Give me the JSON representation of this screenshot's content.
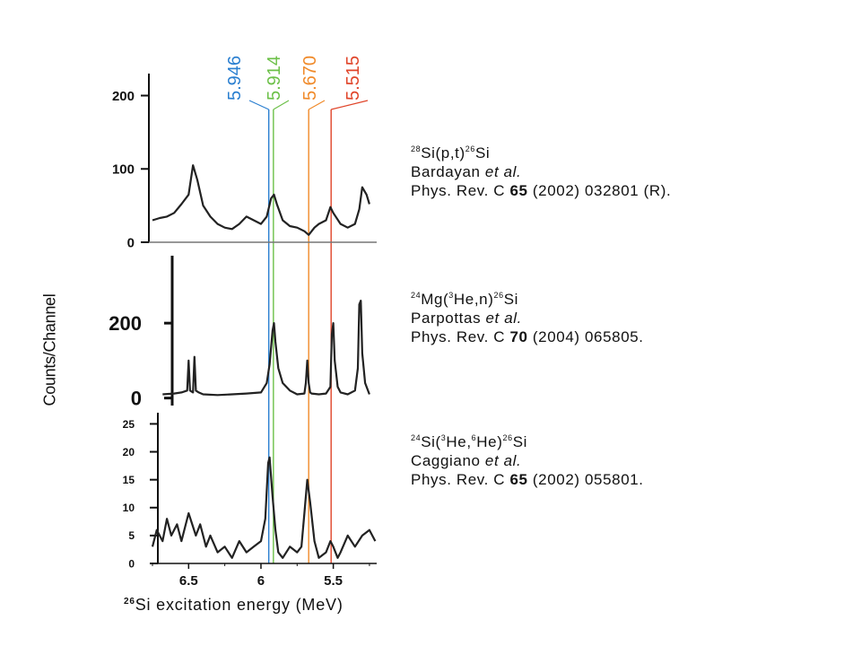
{
  "chart_data": {
    "type": "line",
    "x_axis": {
      "label_isotope": "26",
      "label_text": "Si excitation energy (MeV)",
      "reversed": true,
      "range": [
        6.75,
        5.2
      ],
      "ticks": [
        6.5,
        6,
        5.5
      ],
      "tick_labels": [
        "6.5",
        "6",
        "5.5"
      ]
    },
    "y_axis_label": "Counts/Channel",
    "markers": [
      {
        "energy": 5.946,
        "label": "5.946",
        "color": "#2a7fd0"
      },
      {
        "energy": 5.914,
        "label": "5.914",
        "color": "#6cc048"
      },
      {
        "energy": 5.67,
        "label": "5.670",
        "color": "#f08a2a"
      },
      {
        "energy": 5.515,
        "label": "5.515",
        "color": "#e0452a"
      }
    ],
    "panels": [
      {
        "reaction_parts": {
          "a": "28",
          "b": "Si(p,t)",
          "c": "26",
          "d": "Si"
        },
        "authors": "Bardayan",
        "etal": "et al.",
        "journal": "Phys. Rev. C",
        "volume": "65",
        "year_page": "(2002) 032801 (R).",
        "ylim": [
          0,
          230
        ],
        "yticks": [
          0,
          100,
          200
        ],
        "ytick_labels": [
          "0",
          "100",
          "200"
        ],
        "x": [
          6.75,
          6.7,
          6.65,
          6.6,
          6.55,
          6.5,
          6.47,
          6.44,
          6.4,
          6.35,
          6.3,
          6.25,
          6.2,
          6.15,
          6.1,
          6.05,
          6.0,
          5.96,
          5.93,
          5.91,
          5.89,
          5.85,
          5.8,
          5.75,
          5.7,
          5.67,
          5.63,
          5.6,
          5.55,
          5.52,
          5.5,
          5.45,
          5.4,
          5.35,
          5.32,
          5.3,
          5.27,
          5.25
        ],
        "y": [
          30,
          33,
          35,
          40,
          52,
          65,
          105,
          85,
          50,
          35,
          25,
          20,
          18,
          25,
          35,
          30,
          25,
          35,
          60,
          65,
          52,
          30,
          22,
          20,
          15,
          10,
          20,
          25,
          30,
          48,
          40,
          25,
          20,
          25,
          45,
          75,
          65,
          52
        ]
      },
      {
        "reaction_parts": {
          "a": "24",
          "b": "Mg(",
          "c": "3",
          "d": "He,n)",
          "e": "26",
          "f": "Si"
        },
        "authors": "Parpottas",
        "etal": "et al.",
        "journal": "Phys. Rev. C",
        "volume": "70",
        "year_page": "(2004) 065805.",
        "ylim": [
          -20,
          380
        ],
        "yticks": [
          0,
          200
        ],
        "ytick_labels": [
          "0",
          "200"
        ],
        "x": [
          6.68,
          6.6,
          6.55,
          6.51,
          6.5,
          6.49,
          6.47,
          6.46,
          6.45,
          6.43,
          6.4,
          6.3,
          6.2,
          6.1,
          6.0,
          5.96,
          5.94,
          5.92,
          5.91,
          5.9,
          5.88,
          5.85,
          5.8,
          5.75,
          5.7,
          5.69,
          5.68,
          5.67,
          5.66,
          5.65,
          5.6,
          5.55,
          5.52,
          5.51,
          5.5,
          5.49,
          5.47,
          5.45,
          5.4,
          5.35,
          5.33,
          5.32,
          5.31,
          5.3,
          5.28,
          5.25
        ],
        "y": [
          10,
          12,
          15,
          20,
          100,
          20,
          15,
          110,
          20,
          15,
          10,
          8,
          10,
          12,
          15,
          40,
          90,
          180,
          200,
          150,
          80,
          40,
          20,
          10,
          12,
          40,
          100,
          40,
          15,
          12,
          10,
          12,
          30,
          170,
          200,
          100,
          30,
          15,
          10,
          20,
          80,
          250,
          260,
          120,
          40,
          10
        ]
      },
      {
        "reaction_parts": {
          "a": "24",
          "b": "Si(",
          "c": "3",
          "d": "He,",
          "e": "6",
          "f": "He)",
          "g": "26",
          "h": "Si"
        },
        "authors": "Caggiano",
        "etal": "et al.",
        "journal": "Phys. Rev. C",
        "volume": "65",
        "year_page": "(2002) 055801.",
        "ylim": [
          0,
          27
        ],
        "yticks": [
          0,
          5,
          10,
          15,
          20,
          25
        ],
        "ytick_labels": [
          "0",
          "5",
          "10",
          "15",
          "20",
          "25"
        ],
        "x": [
          6.75,
          6.72,
          6.68,
          6.65,
          6.62,
          6.58,
          6.55,
          6.5,
          6.45,
          6.42,
          6.38,
          6.35,
          6.3,
          6.25,
          6.2,
          6.15,
          6.1,
          6.05,
          6.0,
          5.97,
          5.95,
          5.94,
          5.92,
          5.9,
          5.88,
          5.85,
          5.8,
          5.75,
          5.72,
          5.7,
          5.68,
          5.66,
          5.63,
          5.6,
          5.55,
          5.52,
          5.5,
          5.47,
          5.45,
          5.4,
          5.35,
          5.3,
          5.25,
          5.21
        ],
        "y": [
          3,
          6,
          4,
          8,
          5,
          7,
          4,
          9,
          5,
          7,
          3,
          5,
          2,
          3,
          1,
          4,
          2,
          3,
          4,
          8,
          18,
          19,
          12,
          6,
          2,
          1,
          3,
          2,
          3,
          9,
          15,
          11,
          4,
          1,
          2,
          4,
          3,
          1,
          2,
          5,
          3,
          5,
          6,
          4
        ]
      }
    ]
  }
}
